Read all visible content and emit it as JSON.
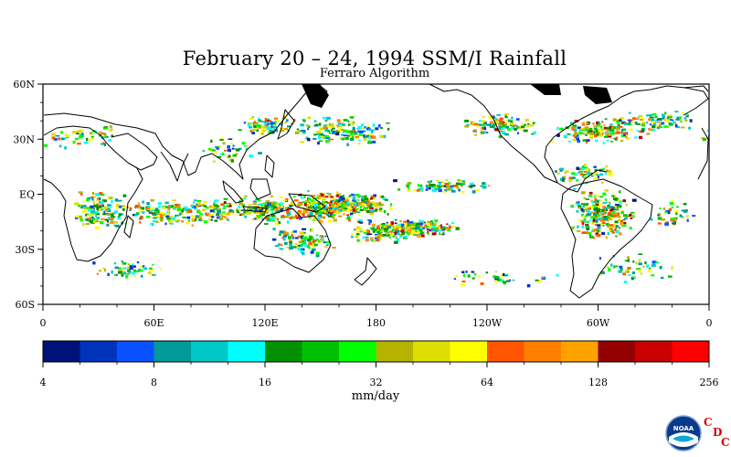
{
  "title": "February 20 – 24, 1994 SSM/I Rainfall",
  "subtitle": "Ferraro Algorithm",
  "map": {
    "projection": "equirectangular",
    "lat_range": [
      -60,
      60
    ],
    "lon_range": [
      0,
      360
    ],
    "lat_tick_labels": [
      "60N",
      "30N",
      "EQ",
      "30S",
      "60S"
    ],
    "lat_tick_values": [
      60,
      30,
      0,
      -30,
      -60
    ],
    "lon_tick_labels": [
      "0",
      "60E",
      "120E",
      "180",
      "120W",
      "60W",
      "0"
    ],
    "lon_tick_values": [
      0,
      60,
      120,
      180,
      240,
      300,
      360
    ]
  },
  "colorbar": {
    "unit_label": "mm/day",
    "tick_labels": [
      "4",
      "8",
      "16",
      "32",
      "64",
      "128",
      "256"
    ],
    "colors": [
      "#00127a",
      "#0033bb",
      "#0a50ff",
      "#009a9a",
      "#00c8c8",
      "#00ffff",
      "#009000",
      "#00c000",
      "#00ff00",
      "#b3b300",
      "#dede00",
      "#ffff00",
      "#ff5500",
      "#ff8000",
      "#ffa200",
      "#940000",
      "#c80000",
      "#ff0000"
    ]
  },
  "logo": {
    "noaa_text": "NOAA",
    "cdc_letters": [
      "C",
      "D",
      "C"
    ]
  }
}
